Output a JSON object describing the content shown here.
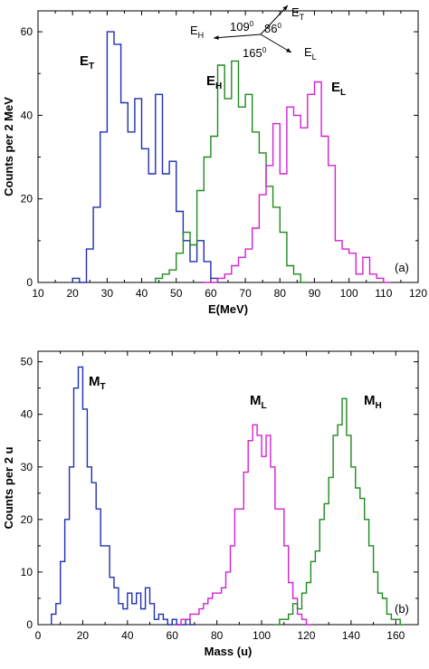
{
  "chart_data": [
    {
      "type": "histogram-step",
      "panel_label": "(a)",
      "xlabel": "E(MeV)",
      "ylabel": "Counts per 2 MeV",
      "xlim": [
        10,
        120
      ],
      "ylim": [
        0,
        65
      ],
      "xticks": [
        10,
        20,
        30,
        40,
        50,
        60,
        70,
        80,
        90,
        100,
        110,
        120
      ],
      "yticks": [
        0,
        20,
        40,
        60
      ],
      "bin_width": 2,
      "inset_diagram": {
        "arrows": [
          "E_T",
          "E_H",
          "E_L"
        ],
        "angles": [
          "109",
          "86",
          "165"
        ]
      },
      "series": [
        {
          "name": "E_T",
          "label_main": "E",
          "label_sub": "T",
          "color": "#1f2fb4",
          "x": [
            20,
            22,
            24,
            26,
            28,
            30,
            32,
            34,
            36,
            38,
            40,
            42,
            44,
            46,
            48,
            50,
            52,
            54,
            56,
            58,
            60
          ],
          "values": [
            1,
            0,
            8,
            18,
            36,
            60,
            57,
            43,
            36,
            44,
            32,
            26,
            45,
            26,
            29,
            17,
            10,
            5,
            10,
            5,
            1
          ]
        },
        {
          "name": "E_H",
          "label_main": "E",
          "label_sub": "H",
          "color": "#1e8a1e",
          "x": [
            44,
            46,
            48,
            50,
            52,
            54,
            56,
            58,
            60,
            62,
            64,
            66,
            68,
            70,
            72,
            74,
            76,
            78,
            80,
            82,
            84,
            86
          ],
          "values": [
            1,
            2,
            3,
            7,
            12,
            9,
            22,
            30,
            35,
            52,
            44,
            53,
            42,
            45,
            36,
            31,
            23,
            18,
            12,
            4,
            2,
            0
          ]
        },
        {
          "name": "E_L",
          "label_main": "E",
          "label_sub": "L",
          "color": "#d321d0",
          "x": [
            58,
            60,
            62,
            64,
            66,
            68,
            70,
            72,
            74,
            76,
            78,
            80,
            82,
            84,
            86,
            88,
            90,
            92,
            94,
            96,
            98,
            100,
            102,
            104,
            106,
            108,
            110
          ],
          "values": [
            0,
            0,
            1,
            2,
            4,
            6,
            8,
            13,
            21,
            28,
            38,
            26,
            42,
            40,
            37,
            45,
            48,
            35,
            28,
            10,
            8,
            7,
            2,
            6,
            2,
            1,
            0
          ]
        }
      ]
    },
    {
      "type": "histogram-step",
      "panel_label": "(b)",
      "xlabel": "Mass (u)",
      "ylabel": "Counts per 2 u",
      "xlim": [
        0,
        170
      ],
      "ylim": [
        0,
        52
      ],
      "xticks": [
        0,
        20,
        40,
        60,
        80,
        100,
        120,
        140,
        160
      ],
      "yticks": [
        0,
        10,
        20,
        30,
        40,
        50
      ],
      "bin_width": 2,
      "series": [
        {
          "name": "M_T",
          "label_main": "M",
          "label_sub": "T",
          "color": "#1f2fb4",
          "x": [
            6,
            8,
            10,
            12,
            14,
            16,
            18,
            20,
            22,
            24,
            26,
            28,
            30,
            32,
            34,
            36,
            38,
            40,
            42,
            44,
            46,
            48,
            50,
            52,
            54,
            56,
            58,
            60,
            62,
            64,
            66,
            68
          ],
          "values": [
            2,
            4,
            12,
            20,
            30,
            45,
            49,
            41,
            30,
            27,
            22,
            15,
            15,
            9,
            7,
            4,
            3,
            6,
            4,
            6,
            3,
            7,
            4,
            1,
            2,
            1,
            0,
            1,
            0,
            0,
            1,
            0
          ]
        },
        {
          "name": "M_L",
          "label_main": "M",
          "label_sub": "L",
          "color": "#d321d0",
          "x": [
            62,
            64,
            66,
            68,
            70,
            72,
            74,
            76,
            78,
            80,
            82,
            84,
            86,
            88,
            90,
            92,
            94,
            96,
            98,
            100,
            102,
            104,
            106,
            108,
            110,
            112,
            114,
            116,
            118,
            120
          ],
          "values": [
            0,
            1,
            1,
            2,
            2,
            3,
            4,
            5,
            6,
            6,
            7,
            10,
            15,
            22,
            22,
            29,
            35,
            38,
            36,
            32,
            36,
            30,
            22,
            22,
            15,
            8,
            5,
            2,
            1,
            0
          ]
        },
        {
          "name": "M_H",
          "label_main": "M",
          "label_sub": "H",
          "color": "#1e8a1e",
          "x": [
            106,
            108,
            110,
            112,
            114,
            116,
            118,
            120,
            122,
            124,
            126,
            128,
            130,
            132,
            134,
            136,
            138,
            140,
            142,
            144,
            146,
            148,
            150,
            152,
            154,
            156,
            158,
            160,
            162
          ],
          "values": [
            0,
            1,
            1,
            2,
            4,
            3,
            6,
            8,
            12,
            14,
            20,
            23,
            28,
            36,
            38,
            43,
            36,
            30,
            26,
            24,
            20,
            15,
            10,
            6,
            5,
            2,
            1,
            1,
            0
          ]
        }
      ]
    }
  ]
}
